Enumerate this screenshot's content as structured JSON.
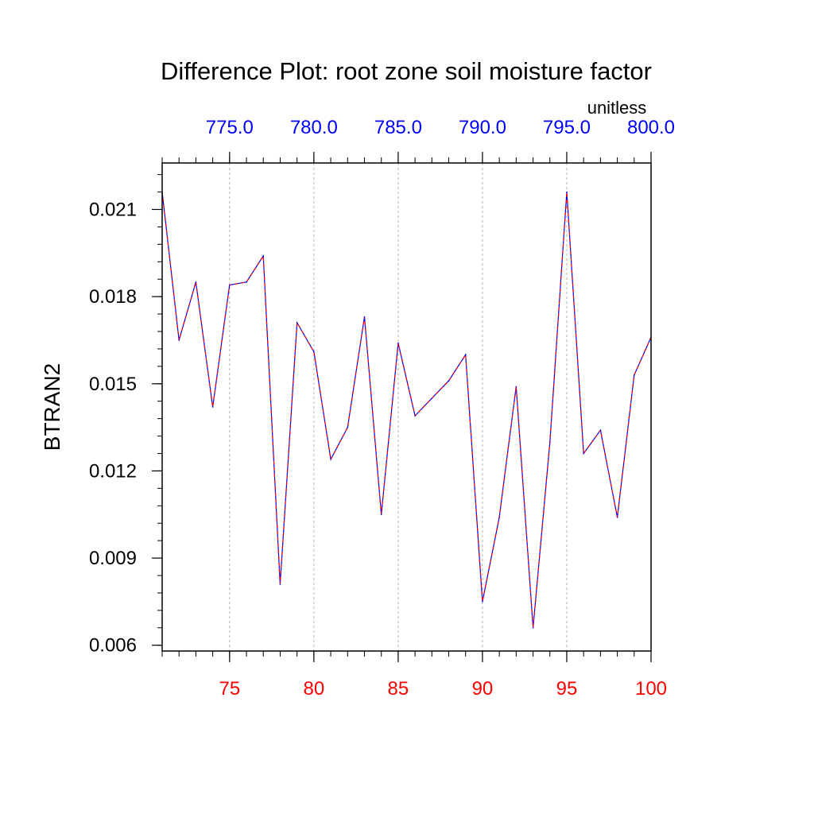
{
  "chart_data": {
    "type": "line",
    "title": "Difference Plot: root zone soil moisture factor",
    "units_label": "unitless",
    "ylabel": "BTRAN2",
    "xlabel": "",
    "x_bottom": {
      "ticks": [
        "75",
        "80",
        "85",
        "90",
        "95",
        "100"
      ],
      "tick_values": [
        75,
        80,
        85,
        90,
        95,
        100
      ],
      "range": [
        71,
        100
      ],
      "color": "#ff0000"
    },
    "x_top": {
      "ticks": [
        "775.0",
        "780.0",
        "785.0",
        "790.0",
        "795.0",
        "800.0"
      ],
      "tick_values": [
        75,
        80,
        85,
        90,
        95,
        100
      ],
      "color": "#0000ff"
    },
    "y_axis": {
      "ticks": [
        "0.006",
        "0.009",
        "0.012",
        "0.015",
        "0.018",
        "0.021"
      ],
      "tick_values": [
        0.006,
        0.009,
        0.012,
        0.015,
        0.018,
        0.021
      ],
      "range": [
        0.0058,
        0.0226
      ]
    },
    "series": [
      {
        "name": "BTRAN2",
        "color_primary": "#0000ff",
        "color_secondary": "#ff0000",
        "x": [
          71,
          72,
          73,
          74,
          75,
          76,
          77,
          78,
          79,
          80,
          81,
          82,
          83,
          84,
          85,
          86,
          87,
          88,
          89,
          90,
          91,
          92,
          93,
          94,
          95,
          96,
          97,
          98,
          99,
          100
        ],
        "values": [
          0.0216,
          0.0165,
          0.0185,
          0.0142,
          0.0184,
          0.0185,
          0.0194,
          0.0081,
          0.0171,
          0.0161,
          0.0124,
          0.0135,
          0.0173,
          0.0105,
          0.0164,
          0.0139,
          0.0145,
          0.0151,
          0.016,
          0.0075,
          0.0104,
          0.0149,
          0.0066,
          0.013,
          0.0216,
          0.0126,
          0.0134,
          0.0104,
          0.0153,
          0.0166
        ]
      }
    ]
  }
}
